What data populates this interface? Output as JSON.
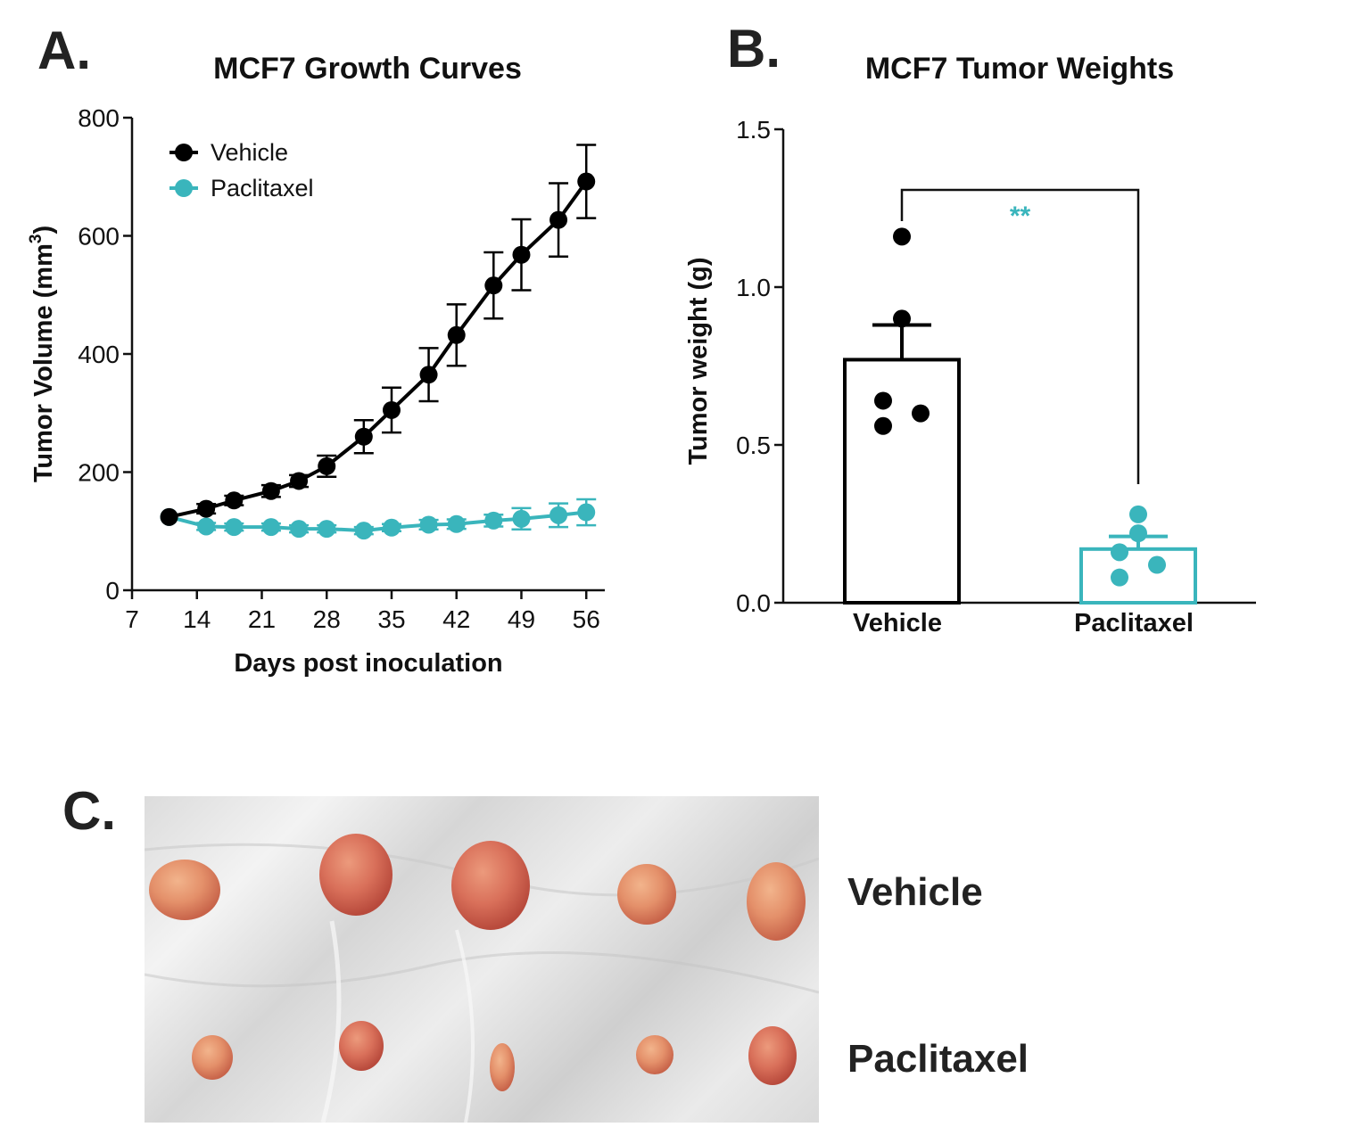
{
  "panels": {
    "a_letter": "A.",
    "b_letter": "B.",
    "c_letter": "C."
  },
  "chart_data": [
    {
      "panel": "A",
      "type": "line",
      "title": "MCF7 Growth Curves",
      "xlabel": "Days post inoculation",
      "ylabel_main": "Tumor Volume (mm",
      "ylabel_sup": "3",
      "ylabel_end": ")",
      "xlim": [
        7,
        58
      ],
      "ylim": [
        0,
        800
      ],
      "xticks": [
        7,
        14,
        21,
        28,
        35,
        42,
        49,
        56
      ],
      "yticks": [
        0,
        200,
        400,
        600,
        800
      ],
      "legend": "top-left",
      "series": [
        {
          "name": "Vehicle",
          "color": "#000000",
          "points": [
            {
              "x": 11,
              "y": 124,
              "err": 0
            },
            {
              "x": 15,
              "y": 138,
              "err": 8
            },
            {
              "x": 18,
              "y": 152,
              "err": 8
            },
            {
              "x": 22,
              "y": 168,
              "err": 10
            },
            {
              "x": 25,
              "y": 185,
              "err": 10
            },
            {
              "x": 28,
              "y": 210,
              "err": 18
            },
            {
              "x": 32,
              "y": 260,
              "err": 28
            },
            {
              "x": 35,
              "y": 305,
              "err": 38
            },
            {
              "x": 39,
              "y": 365,
              "err": 45
            },
            {
              "x": 42,
              "y": 432,
              "err": 52
            },
            {
              "x": 46,
              "y": 516,
              "err": 56
            },
            {
              "x": 49,
              "y": 568,
              "err": 60
            },
            {
              "x": 53,
              "y": 627,
              "err": 62
            },
            {
              "x": 56,
              "y": 692,
              "err": 62
            }
          ]
        },
        {
          "name": "Paclitaxel",
          "color": "#3ab5bc",
          "points": [
            {
              "x": 11,
              "y": 124,
              "err": 0
            },
            {
              "x": 15,
              "y": 108,
              "err": 6
            },
            {
              "x": 18,
              "y": 107,
              "err": 6
            },
            {
              "x": 22,
              "y": 107,
              "err": 6
            },
            {
              "x": 25,
              "y": 104,
              "err": 6
            },
            {
              "x": 28,
              "y": 104,
              "err": 6
            },
            {
              "x": 32,
              "y": 101,
              "err": 6
            },
            {
              "x": 35,
              "y": 106,
              "err": 6
            },
            {
              "x": 39,
              "y": 111,
              "err": 8
            },
            {
              "x": 42,
              "y": 112,
              "err": 8
            },
            {
              "x": 46,
              "y": 118,
              "err": 10
            },
            {
              "x": 49,
              "y": 121,
              "err": 18
            },
            {
              "x": 53,
              "y": 127,
              "err": 20
            },
            {
              "x": 56,
              "y": 132,
              "err": 22
            }
          ]
        }
      ]
    },
    {
      "panel": "B",
      "type": "bar",
      "title": "MCF7 Tumor Weights",
      "ylabel": "Tumor weight (g)",
      "xlabel": "",
      "ylim": [
        0,
        1.5
      ],
      "yticks": [
        0.0,
        0.5,
        1.0,
        1.5
      ],
      "ytick_labels": [
        "0.0",
        "0.5",
        "1.0",
        "1.5"
      ],
      "categories": [
        "Vehicle",
        "Paclitaxel"
      ],
      "values": [
        0.77,
        0.17
      ],
      "sem": [
        0.11,
        0.04
      ],
      "colors": [
        "#000000",
        "#3ab5bc"
      ],
      "points": [
        [
          1.16,
          0.9,
          0.64,
          0.6,
          0.56
        ],
        [
          0.28,
          0.22,
          0.16,
          0.12,
          0.08
        ]
      ],
      "significance": "**",
      "significance_color": "#3ab5bc"
    }
  ],
  "photo": {
    "row_labels": [
      "Vehicle",
      "Paclitaxel"
    ]
  }
}
